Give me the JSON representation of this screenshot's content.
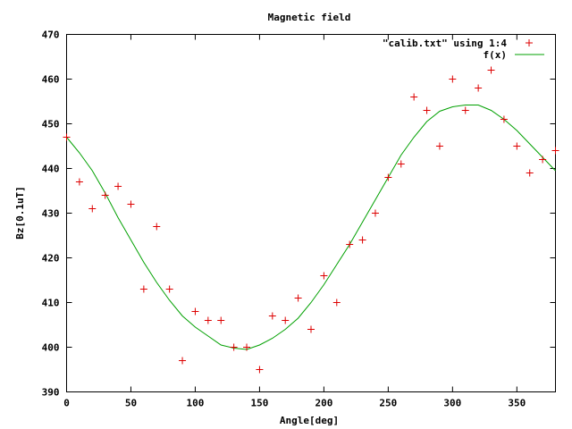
{
  "chart_data": {
    "type": "scatter",
    "title": "Magnetic field",
    "xlabel": "Angle[deg]",
    "ylabel": "Bz[0.1uT]",
    "xlim": [
      0,
      380
    ],
    "ylim": [
      390,
      470
    ],
    "grid": false,
    "legend_position": "top-right",
    "x_ticks": [
      0,
      50,
      100,
      150,
      200,
      250,
      300,
      350
    ],
    "y_ticks": [
      390,
      400,
      410,
      420,
      430,
      440,
      450,
      460,
      470
    ],
    "x_tick_labels": [
      "0",
      "50",
      "100",
      "150",
      "200",
      "250",
      "300",
      "350"
    ],
    "y_tick_labels": [
      "390",
      "400",
      "410",
      "420",
      "430",
      "440",
      "450",
      "460",
      "470"
    ],
    "series": [
      {
        "name": "\"calib.txt\" using 1:4",
        "kind": "points",
        "color": "#dd0000",
        "x": [
          0,
          10,
          20,
          30,
          40,
          50,
          60,
          70,
          80,
          90,
          100,
          110,
          120,
          130,
          140,
          150,
          160,
          170,
          180,
          190,
          200,
          210,
          220,
          230,
          240,
          250,
          260,
          270,
          280,
          290,
          300,
          310,
          320,
          330,
          340,
          350,
          360,
          370,
          380
        ],
        "y": [
          447,
          437,
          431,
          434,
          436,
          432,
          413,
          427,
          413,
          397,
          408,
          406,
          406,
          400,
          400,
          395,
          407,
          406,
          411,
          404,
          416,
          410,
          423,
          424,
          430,
          438,
          441,
          456,
          453,
          445,
          460,
          453,
          458,
          462,
          451,
          445,
          439,
          442,
          444
        ]
      },
      {
        "name": "f(x)",
        "kind": "line",
        "color": "#00a000",
        "x": [
          0,
          10,
          20,
          30,
          40,
          50,
          60,
          70,
          80,
          90,
          100,
          110,
          120,
          130,
          140,
          150,
          160,
          170,
          180,
          190,
          200,
          210,
          220,
          230,
          240,
          250,
          260,
          270,
          280,
          290,
          300,
          310,
          320,
          330,
          340,
          350,
          360,
          370,
          380
        ],
        "y": [
          447,
          443.5,
          439.5,
          434.5,
          429,
          424,
          419,
          414.5,
          410.5,
          407,
          404.5,
          402.5,
          400.5,
          399.8,
          399.5,
          400.5,
          402,
          404,
          406.5,
          410,
          414,
          418.5,
          423,
          428,
          433,
          438,
          443,
          447,
          450.5,
          452.8,
          453.8,
          454.2,
          454.2,
          453,
          451,
          448.5,
          445.5,
          442.5,
          439.5
        ]
      }
    ]
  }
}
